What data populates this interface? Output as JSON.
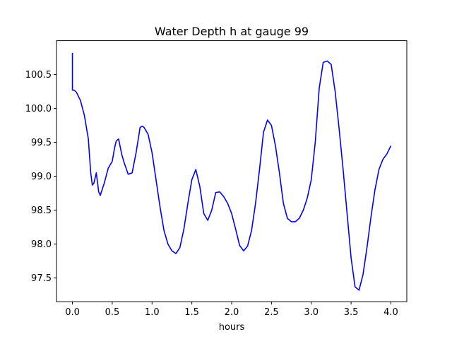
{
  "chart_data": {
    "type": "line",
    "title": "Water Depth h at gauge 99",
    "xlabel": "hours",
    "ylabel": "",
    "xlim": [
      -0.2,
      4.2
    ],
    "ylim": [
      97.15,
      101.0
    ],
    "xticks": [
      0.0,
      0.5,
      1.0,
      1.5,
      2.0,
      2.5,
      3.0,
      3.5,
      4.0
    ],
    "xtick_labels": [
      "0.0",
      "0.5",
      "1.0",
      "1.5",
      "2.0",
      "2.5",
      "3.0",
      "3.5",
      "4.0"
    ],
    "yticks": [
      97.5,
      98.0,
      98.5,
      99.0,
      99.5,
      100.0,
      100.5
    ],
    "ytick_labels": [
      "97.5",
      "98.0",
      "98.5",
      "99.0",
      "99.5",
      "100.0",
      "100.5"
    ],
    "grid": false,
    "series": [
      {
        "color": "#0000ff",
        "x": [
          0.0,
          0.0,
          0.02,
          0.05,
          0.1,
          0.15,
          0.2,
          0.23,
          0.25,
          0.27,
          0.3,
          0.33,
          0.35,
          0.4,
          0.45,
          0.5,
          0.53,
          0.55,
          0.58,
          0.62,
          0.65,
          0.7,
          0.75,
          0.8,
          0.85,
          0.88,
          0.9,
          0.95,
          1.0,
          1.05,
          1.1,
          1.15,
          1.2,
          1.25,
          1.3,
          1.35,
          1.4,
          1.45,
          1.5,
          1.55,
          1.6,
          1.65,
          1.7,
          1.75,
          1.8,
          1.85,
          1.9,
          1.95,
          2.0,
          2.05,
          2.1,
          2.15,
          2.2,
          2.25,
          2.3,
          2.35,
          2.4,
          2.45,
          2.5,
          2.55,
          2.6,
          2.65,
          2.7,
          2.75,
          2.8,
          2.85,
          2.9,
          2.95,
          3.0,
          3.05,
          3.1,
          3.15,
          3.2,
          3.25,
          3.3,
          3.35,
          3.4,
          3.45,
          3.5,
          3.55,
          3.6,
          3.65,
          3.7,
          3.75,
          3.8,
          3.85,
          3.9,
          3.95,
          4.0
        ],
        "y": [
          100.82,
          100.27,
          100.27,
          100.24,
          100.12,
          99.9,
          99.55,
          99.05,
          98.87,
          98.9,
          99.05,
          98.77,
          98.72,
          98.9,
          99.12,
          99.22,
          99.42,
          99.52,
          99.55,
          99.32,
          99.2,
          99.03,
          99.05,
          99.35,
          99.72,
          99.74,
          99.72,
          99.62,
          99.35,
          98.95,
          98.55,
          98.2,
          98.0,
          97.9,
          97.86,
          97.95,
          98.22,
          98.6,
          98.95,
          99.1,
          98.85,
          98.45,
          98.35,
          98.5,
          98.76,
          98.77,
          98.7,
          98.6,
          98.45,
          98.22,
          97.98,
          97.9,
          97.97,
          98.2,
          98.6,
          99.1,
          99.65,
          99.83,
          99.75,
          99.45,
          99.05,
          98.6,
          98.38,
          98.33,
          98.33,
          98.38,
          98.5,
          98.68,
          98.95,
          99.5,
          100.3,
          100.68,
          100.7,
          100.65,
          100.25,
          99.7,
          99.1,
          98.45,
          97.8,
          97.37,
          97.32,
          97.55,
          97.95,
          98.4,
          98.8,
          99.1,
          99.25,
          99.33,
          99.45
        ]
      }
    ]
  }
}
